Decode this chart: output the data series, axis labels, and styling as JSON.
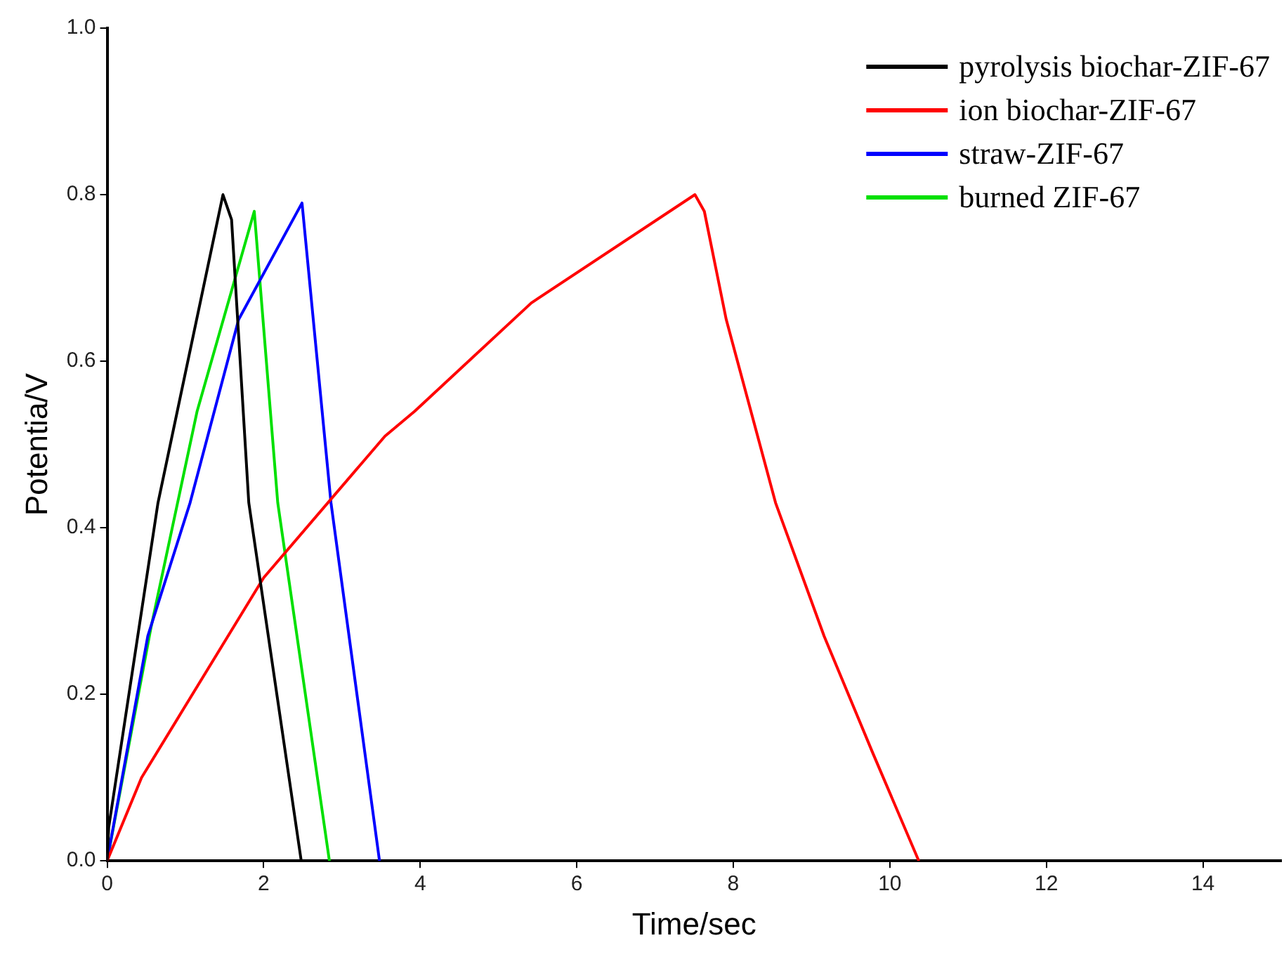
{
  "chart_data": {
    "type": "line",
    "xlabel": "Time/sec",
    "ylabel": "Potentia/V",
    "xlim": [
      0,
      15
    ],
    "ylim": [
      0,
      1
    ],
    "xticks": [
      0,
      2,
      4,
      6,
      8,
      10,
      12,
      14
    ],
    "yticks": [
      {
        "value": 0,
        "label": "0.0"
      },
      0.2,
      0.4,
      0.6,
      0.8,
      {
        "value": 1,
        "label": "1.0"
      }
    ],
    "grid": false,
    "legend": "top right",
    "marker": "none",
    "line_style": "solid",
    "series": [
      {
        "name": "pyrolysis biochar-ZIF-67",
        "color": "#000000",
        "x": [
          0,
          0.02,
          0.65,
          1.48,
          1.59,
          1.81,
          2.48
        ],
        "values": [
          0,
          0.04,
          0.43,
          0.8,
          0.77,
          0.43,
          0
        ]
      },
      {
        "name": "ion biochar-ZIF-67",
        "color": "#ff0000",
        "x": [
          0,
          0.44,
          2,
          3.55,
          3.93,
          5.42,
          7.51,
          7.63,
          7.91,
          8.54,
          9.16,
          9.78,
          10.37
        ],
        "values": [
          0,
          0.1,
          0.34,
          0.51,
          0.54,
          0.67,
          0.8,
          0.78,
          0.65,
          0.43,
          0.27,
          0.13,
          0
        ]
      },
      {
        "name": "straw-ZIF-67",
        "color": "#0000ff",
        "x": [
          0,
          0.52,
          1.06,
          1.68,
          2.49,
          2.86,
          3.48
        ],
        "values": [
          0,
          0.27,
          0.43,
          0.65,
          0.79,
          0.43,
          0
        ]
      },
      {
        "name": "burned ZIF-67",
        "color": "#00e000",
        "x": [
          0,
          0.56,
          1.15,
          1.88,
          2.18,
          2.84
        ],
        "values": [
          0,
          0.28,
          0.54,
          0.78,
          0.43,
          0
        ]
      }
    ]
  }
}
